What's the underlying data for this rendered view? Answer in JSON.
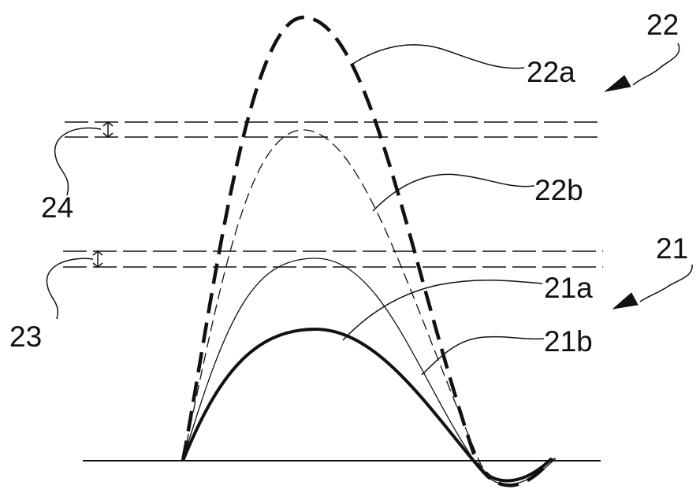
{
  "figure": {
    "labels": {
      "group_22": "22",
      "curve_22a": "22a",
      "curve_22b": "22b",
      "band_24": "24",
      "group_21": "21",
      "curve_21a": "21a",
      "curve_21b": "21b",
      "band_23": "23"
    },
    "colors": {
      "ink": "#111111",
      "background": "#ffffff"
    }
  }
}
